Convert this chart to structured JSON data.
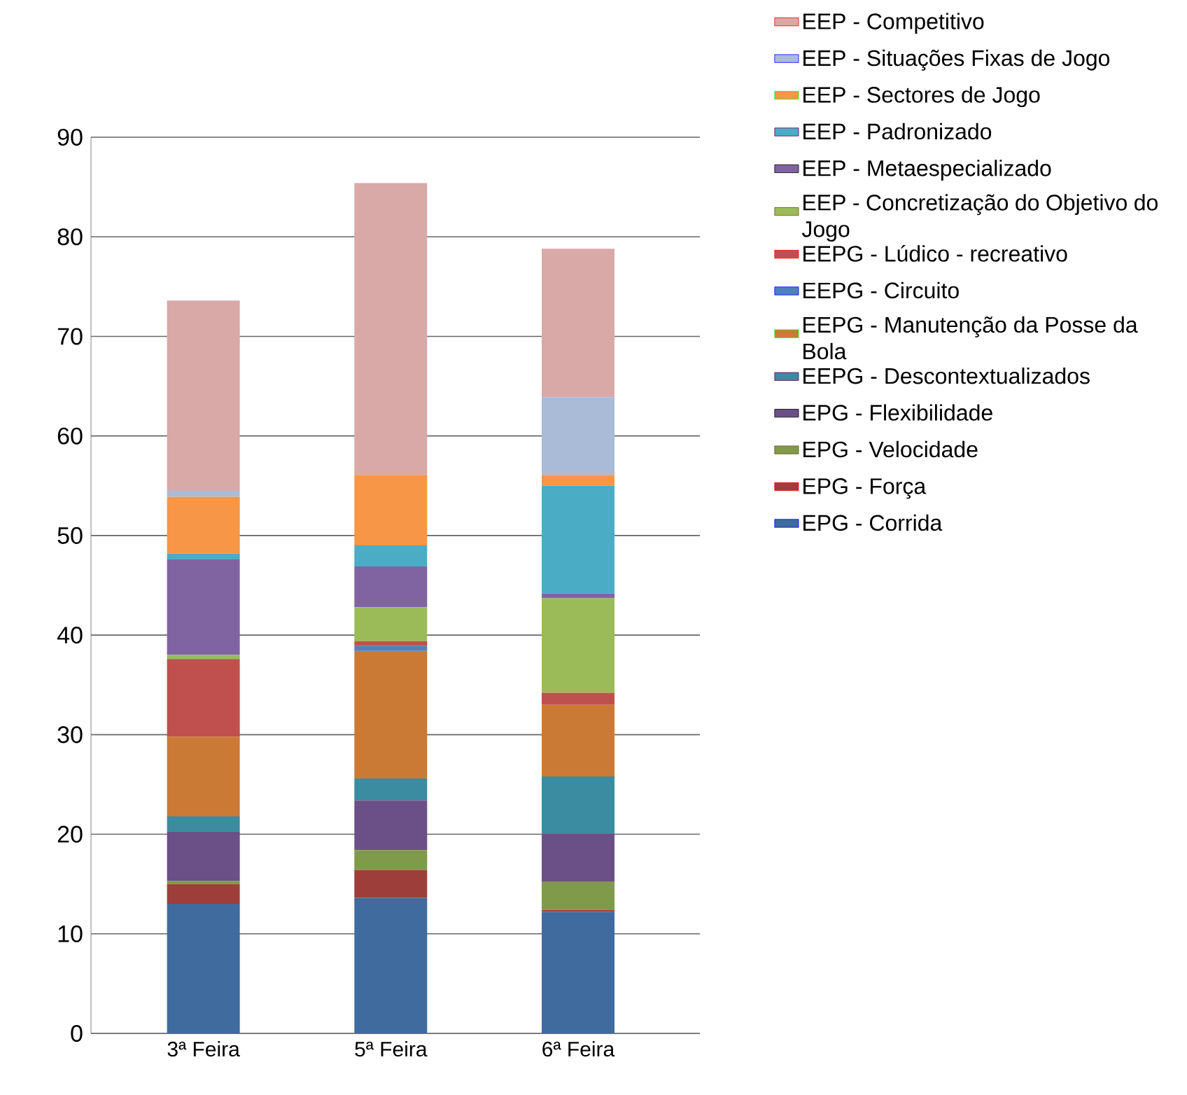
{
  "chart_data": {
    "type": "bar",
    "stacked": true,
    "categories": [
      "3ª Feira",
      "5ª Feira",
      "6ª Feira"
    ],
    "series": [
      {
        "name": "EPG - Corrida",
        "color": "#3f6b9e",
        "values": [
          13,
          13.6,
          12.2
        ]
      },
      {
        "name": "EPG - Força",
        "color": "#9e3e3a",
        "values": [
          2,
          2.8,
          0.2
        ]
      },
      {
        "name": "EPG - Velocidade",
        "color": "#7f9a48",
        "values": [
          0.3,
          2,
          2.8
        ]
      },
      {
        "name": "EPG - Flexibilidade",
        "color": "#6b5087",
        "values": [
          5,
          5,
          4.9
        ]
      },
      {
        "name": "EEPG - Descontextualizados",
        "color": "#3b8ca0",
        "values": [
          1.5,
          2.2,
          5.7
        ]
      },
      {
        "name": "EEPG - Manutenção da Posse da Bola",
        "color": "#cb7a35",
        "values": [
          8,
          12.8,
          7.2
        ]
      },
      {
        "name": "EEPG - Circuito",
        "color": "#4f81bd",
        "values": [
          0,
          0.5,
          0
        ]
      },
      {
        "name": "EEPG - Lúdico - recreativo",
        "color": "#c0504d",
        "values": [
          7.8,
          0.5,
          1.2
        ]
      },
      {
        "name": "EEP - Concretização do Objetivo do Jogo",
        "color": "#9bbb59",
        "values": [
          0.4,
          3.4,
          9.5
        ]
      },
      {
        "name": "EEP - Metaespecializado",
        "color": "#8064a2",
        "values": [
          9.6,
          4.1,
          0.5
        ]
      },
      {
        "name": "EEP - Padronizado",
        "color": "#4bacc6",
        "values": [
          0.6,
          2.1,
          10.8
        ]
      },
      {
        "name": "EEP - Sectores de Jogo",
        "color": "#f79646",
        "values": [
          5.7,
          7.1,
          1.1
        ]
      },
      {
        "name": "EEP - Situações Fixas de Jogo",
        "color": "#aabbd8",
        "values": [
          0.6,
          0,
          7.8
        ]
      },
      {
        "name": "EEP - Competitivo",
        "color": "#d9a9a7",
        "values": [
          19.1,
          29.3,
          14.9
        ]
      }
    ],
    "ylim": [
      0,
      90
    ],
    "yticks": [
      0,
      10,
      20,
      30,
      40,
      50,
      60,
      70,
      80,
      90
    ],
    "grid": "y",
    "legend": "right"
  }
}
